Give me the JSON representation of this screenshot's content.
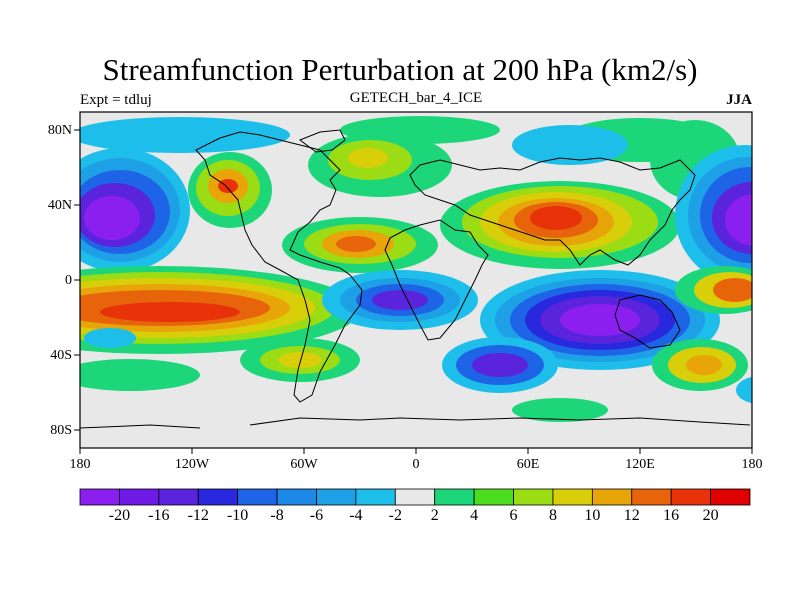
{
  "title": "Streamfunction Perturbation at 200 hPa (km2/s)",
  "left_label": "Expt = tdluj",
  "center_label": "GETECH_bar_4_ICE",
  "right_label": "JJA",
  "lat_ticks": [
    "80N",
    "40N",
    "0",
    "40S",
    "80S"
  ],
  "lon_ticks": [
    "180",
    "120W",
    "60W",
    "0",
    "60E",
    "120E",
    "180"
  ],
  "colorbar": {
    "labels": [
      "-20",
      "-16",
      "-12",
      "-10",
      "-8",
      "-6",
      "-4",
      "-2",
      "2",
      "4",
      "6",
      "8",
      "10",
      "12",
      "16",
      "20"
    ],
    "colors": [
      "#8a1ff0",
      "#6f1ae6",
      "#5a24dc",
      "#2828de",
      "#1e64e6",
      "#1e88e6",
      "#1ea0e6",
      "#1ebeeb",
      "#e8e8e8",
      "#1ed67a",
      "#4bdc1e",
      "#9bdc14",
      "#d8cf0a",
      "#e8a50a",
      "#e8640a",
      "#e8320a",
      "#e00000"
    ]
  }
}
